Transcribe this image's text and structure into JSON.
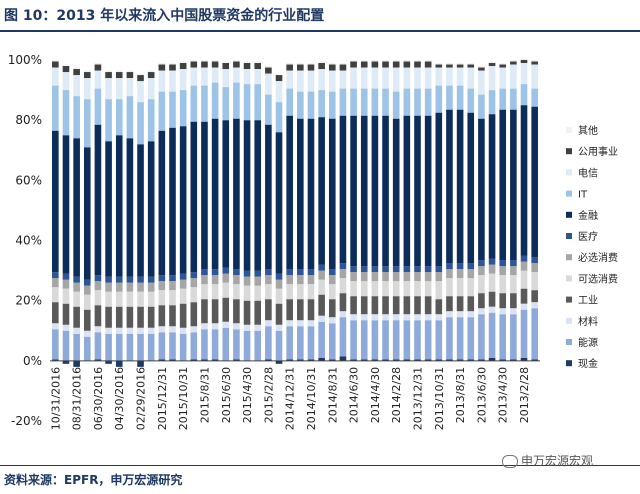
{
  "title": "图 10：2013 年以来流入中国股票资金的行业配置",
  "source": "资料来源：EPFR，申万宏源研究",
  "watermark": "申万宏源宏观",
  "chart_data": {
    "type": "bar",
    "stacked": true,
    "ylim": [
      -20,
      100
    ],
    "yticks": [
      "-20%",
      "0%",
      "20%",
      "40%",
      "60%",
      "80%",
      "100%"
    ],
    "ytick_values": [
      -20,
      0,
      20,
      40,
      60,
      80,
      100
    ],
    "x_tick_labels": [
      "10/31/2016",
      "08/31/2016",
      "06/30/2016",
      "04/30/2016",
      "02/29/2016",
      "2015/12/31",
      "2015/10/31",
      "2015/8/31",
      "2015/6/30",
      "2015/4/30",
      "2015/2/28",
      "2014/12/31",
      "2014/10/31",
      "2014/8/31",
      "2014/6/30",
      "2014/4/30",
      "2014/2/28",
      "2013/12/31",
      "2013/10/31",
      "2013/8/31",
      "2013/6/30",
      "2013/4/30",
      "2013/2/28"
    ],
    "categories": [
      "10/31/2016",
      "09/30/2016",
      "08/31/2016",
      "07/31/2016",
      "06/30/2016",
      "05/31/2016",
      "04/30/2016",
      "03/31/2016",
      "02/29/2016",
      "01/31/2016",
      "2015/12/31",
      "2015/11/30",
      "2015/10/31",
      "2015/9/30",
      "2015/8/31",
      "2015/7/31",
      "2015/6/30",
      "2015/5/31",
      "2015/4/30",
      "2015/3/31",
      "2015/2/28",
      "2015/1/31",
      "2014/12/31",
      "2014/11/30",
      "2014/10/31",
      "2014/9/30",
      "2014/8/31",
      "2014/7/31",
      "2014/6/30",
      "2014/5/31",
      "2014/4/30",
      "2014/3/31",
      "2014/2/28",
      "2014/1/31",
      "2013/12/31",
      "2013/11/30",
      "2013/10/31",
      "2013/9/30",
      "2013/8/31",
      "2013/7/31",
      "2013/6/30",
      "2013/5/31",
      "2013/4/30",
      "2013/3/31",
      "2013/2/28",
      "2013/1/31"
    ],
    "series": [
      {
        "name": "现金",
        "color": "#1f3864",
        "values": [
          0.5,
          -1,
          -2,
          0,
          0.5,
          -1,
          -2,
          0,
          -2,
          0,
          0.5,
          0.5,
          0,
          0.5,
          0.5,
          0.5,
          0,
          0.5,
          0,
          0,
          0.5,
          -1,
          0.5,
          0.5,
          0.5,
          1,
          0.5,
          1.5,
          0.5,
          0.5,
          0.5,
          0.5,
          0.5,
          0.5,
          0.5,
          0.5,
          0.5,
          0.5,
          0.5,
          0.5,
          0.5,
          1,
          0.5,
          0.5,
          1,
          0.5
        ]
      },
      {
        "name": "能源",
        "color": "#8eaadb",
        "values": [
          10,
          10,
          9,
          8,
          9,
          9,
          9,
          9,
          9,
          9,
          9,
          9,
          9,
          9,
          10,
          10,
          11,
          10,
          10,
          10,
          11,
          10,
          11,
          11,
          11,
          12,
          12,
          13,
          13,
          13,
          13,
          13,
          13,
          13,
          13,
          13,
          13,
          14,
          14,
          14,
          15,
          15,
          15,
          15,
          16,
          17
        ]
      },
      {
        "name": "材料",
        "color": "#dae3f3",
        "values": [
          2,
          2,
          2,
          2,
          2,
          2,
          2,
          2,
          2,
          2,
          2,
          2,
          2,
          2,
          2,
          2,
          2,
          2,
          2,
          2,
          2,
          2,
          2,
          2,
          2,
          2,
          2,
          2,
          2,
          2,
          2,
          2,
          2,
          2,
          2,
          2,
          2,
          2,
          2,
          2,
          2,
          2,
          2,
          2,
          2,
          2
        ]
      },
      {
        "name": "工业",
        "color": "#595959",
        "values": [
          7,
          7,
          7,
          7,
          7,
          7,
          7,
          7,
          7,
          7,
          7,
          7,
          8,
          8,
          8,
          8,
          8,
          8,
          8,
          8,
          7,
          7,
          7,
          7,
          7,
          7,
          6,
          6,
          6,
          6,
          6,
          6,
          6,
          6,
          6,
          6,
          5,
          5,
          5,
          5,
          5,
          5,
          5,
          5,
          5,
          4
        ]
      },
      {
        "name": "可选消费",
        "color": "#d9d9d9",
        "values": [
          5,
          5,
          5,
          5,
          5,
          5,
          5,
          5,
          5,
          5,
          5,
          5,
          5,
          5,
          5,
          5,
          5,
          5,
          5,
          5,
          5,
          5,
          5,
          5,
          5,
          5,
          5,
          5,
          5,
          5,
          5,
          5,
          5,
          5,
          5,
          5,
          6,
          6,
          6,
          6,
          6,
          6,
          6,
          6,
          6,
          6
        ]
      },
      {
        "name": "必选消费",
        "color": "#a6a6a6",
        "values": [
          3,
          3,
          3,
          3,
          3,
          3,
          3,
          3,
          3,
          3,
          3,
          3,
          3,
          3,
          3,
          3,
          3,
          3,
          3,
          3,
          3,
          3,
          3,
          3,
          3,
          3,
          3,
          3,
          3,
          3,
          3,
          3,
          3,
          3,
          3,
          3,
          3,
          3,
          3,
          3,
          3,
          3,
          3,
          3,
          3,
          3
        ]
      },
      {
        "name": "医疗",
        "color": "#2e5597",
        "values": [
          2,
          2,
          2,
          2,
          2,
          2,
          2,
          2,
          2,
          2,
          2,
          2,
          2,
          2,
          2,
          2,
          2,
          2,
          2,
          2,
          2,
          2,
          2,
          2,
          2,
          2,
          2,
          2,
          2,
          2,
          2,
          2,
          2,
          2,
          2,
          2,
          2,
          2,
          2,
          2,
          2,
          2,
          2,
          2,
          2,
          2
        ]
      },
      {
        "name": "金融",
        "color": "#0c2c5a",
        "values": [
          47,
          46,
          46,
          44,
          50,
          45,
          47,
          46,
          44,
          45,
          48,
          49,
          49,
          50,
          49,
          50,
          49,
          50,
          50,
          50,
          48,
          47,
          51,
          50,
          50,
          49,
          50,
          49,
          50,
          50,
          50,
          50,
          49,
          50,
          50,
          50,
          51,
          51,
          51,
          50,
          47,
          48,
          50,
          50,
          50,
          50
        ]
      },
      {
        "name": "IT",
        "color": "#9dc3e6",
        "values": [
          15,
          15,
          14,
          16,
          12,
          14,
          12,
          14,
          14,
          14,
          13,
          12,
          12,
          12,
          12,
          12,
          11,
          12,
          12,
          12,
          10,
          10,
          9,
          9,
          9,
          9,
          9,
          9,
          9,
          9,
          9,
          9,
          9,
          9,
          9,
          9,
          9,
          8,
          8,
          8,
          8,
          8,
          7,
          7,
          7,
          6
        ]
      },
      {
        "name": "电信",
        "color": "#deebf7",
        "values": [
          6,
          6,
          7,
          7,
          6,
          7,
          7,
          6,
          7,
          7,
          7,
          7,
          7,
          6,
          6,
          5,
          6,
          5,
          5,
          5,
          7,
          7,
          6,
          7,
          7,
          7,
          7,
          6,
          7,
          7,
          7,
          7,
          8,
          7,
          7,
          7,
          6,
          6,
          6,
          7,
          8,
          8,
          7,
          8,
          7,
          8
        ]
      },
      {
        "name": "公用事业",
        "color": "#404040",
        "values": [
          2,
          2,
          2,
          2,
          2,
          2,
          2,
          2,
          2,
          2,
          2,
          2,
          2,
          2,
          2,
          2,
          2,
          2,
          2,
          2,
          2,
          2,
          2,
          2,
          2,
          2,
          2,
          2,
          2,
          2,
          2,
          2,
          2,
          2,
          2,
          2,
          1,
          1,
          1,
          1,
          1,
          1,
          1,
          1,
          1,
          1
        ]
      },
      {
        "name": "其他",
        "color": "#f2f2f2",
        "values": [
          0.5,
          0.5,
          0.5,
          0.5,
          0.5,
          0.5,
          0.5,
          0.5,
          0.5,
          0.5,
          0.5,
          0.5,
          0.5,
          0.5,
          0.5,
          0.5,
          0.5,
          0.5,
          0.5,
          0.5,
          0.5,
          0.5,
          0.5,
          0.5,
          0.5,
          0.5,
          0.5,
          0.5,
          0.5,
          0.5,
          0.5,
          0.5,
          0.5,
          0.5,
          0.5,
          0.5,
          0.5,
          0.5,
          0.5,
          0.5,
          0.5,
          0.5,
          0.5,
          0.5,
          0.5,
          0.5
        ]
      }
    ],
    "legend_order": [
      "其他",
      "公用事业",
      "电信",
      "IT",
      "金融",
      "医疗",
      "必选消费",
      "可选消费",
      "工业",
      "材料",
      "能源",
      "现金"
    ],
    "legend_position": "right",
    "grid": false
  }
}
